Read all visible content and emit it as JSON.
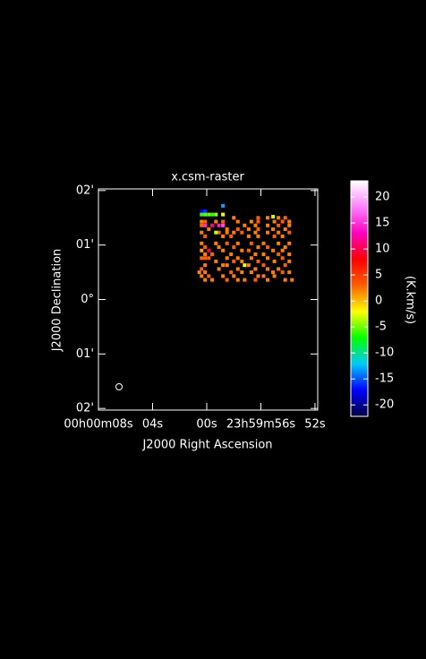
{
  "chart_data": {
    "type": "raster",
    "title": "x.csm-raster",
    "xlabel": "J2000 Right Ascension",
    "ylabel": "J2000 Declination",
    "colorbar_label": "(K.km/s)",
    "xlim": [
      8.0,
      -8.2
    ],
    "ylim": [
      2.03,
      -2.03
    ],
    "xticks": [
      {
        "value": 8,
        "label": "00h00m08s"
      },
      {
        "value": 4,
        "label": "04s"
      },
      {
        "value": 0,
        "label": "00s"
      },
      {
        "value": -4,
        "label": "23h59m56s"
      },
      {
        "value": -8,
        "label": "52s"
      }
    ],
    "yticks": [
      {
        "value": 2,
        "label": "02'"
      },
      {
        "value": 1,
        "label": "01'"
      },
      {
        "value": 0,
        "label": "0°"
      },
      {
        "value": -1,
        "label": "01'"
      },
      {
        "value": -2,
        "label": "02'"
      }
    ],
    "clim": [
      -22.2,
      23.1
    ],
    "cticks": [
      -20,
      -15,
      -10,
      -5,
      0,
      5,
      10,
      15,
      20
    ],
    "colormap": [
      "#000040",
      "#0000ff",
      "#00c8ff",
      "#00ff00",
      "#ffff00",
      "#ff6000",
      "#ff0000",
      "#ff00c0",
      "#ff80ff",
      "#ffffff"
    ],
    "points": [
      [
        0.38,
        1.62,
        -18
      ],
      [
        0.12,
        1.62,
        -16
      ],
      [
        -1.2,
        1.72,
        -13
      ],
      [
        0.38,
        1.56,
        -6
      ],
      [
        0.12,
        1.56,
        -5
      ],
      [
        -0.15,
        1.56,
        -5
      ],
      [
        -0.41,
        1.56,
        -6
      ],
      [
        -0.68,
        1.56,
        -4
      ],
      [
        -1.2,
        1.56,
        -2
      ],
      [
        -2.0,
        1.5,
        2
      ],
      [
        -3.8,
        1.5,
        3
      ],
      [
        -4.5,
        1.5,
        2
      ],
      [
        -5.3,
        1.5,
        2
      ],
      [
        -5.8,
        1.5,
        3
      ],
      [
        -4.9,
        1.52,
        -3
      ],
      [
        0.38,
        1.43,
        2
      ],
      [
        0.12,
        1.43,
        3
      ],
      [
        -0.68,
        1.43,
        2
      ],
      [
        -1.2,
        1.43,
        3
      ],
      [
        -2.3,
        1.43,
        2
      ],
      [
        -3.3,
        1.43,
        2
      ],
      [
        -3.8,
        1.43,
        3
      ],
      [
        -5.0,
        1.43,
        2
      ],
      [
        -5.6,
        1.43,
        3
      ],
      [
        -6.1,
        1.43,
        2
      ],
      [
        0.12,
        1.36,
        15
      ],
      [
        -0.4,
        1.36,
        12
      ],
      [
        -0.9,
        1.36,
        14
      ],
      [
        -1.2,
        1.36,
        16
      ],
      [
        0.38,
        1.36,
        3
      ],
      [
        -2.8,
        1.36,
        2
      ],
      [
        -3.6,
        1.36,
        2
      ],
      [
        -4.5,
        1.36,
        2
      ],
      [
        -5.3,
        1.36,
        3
      ],
      [
        -6.1,
        1.36,
        2
      ],
      [
        -0.15,
        1.29,
        2
      ],
      [
        -1.5,
        1.29,
        2
      ],
      [
        -2.3,
        1.29,
        3
      ],
      [
        -3.1,
        1.29,
        2
      ],
      [
        -3.8,
        1.29,
        3
      ],
      [
        -4.9,
        1.29,
        2
      ],
      [
        -5.8,
        1.29,
        2
      ],
      [
        0.38,
        1.23,
        2
      ],
      [
        -0.9,
        1.23,
        3
      ],
      [
        -0.68,
        1.23,
        -3
      ],
      [
        -1.5,
        1.23,
        2
      ],
      [
        -2.0,
        1.23,
        2
      ],
      [
        -2.6,
        1.23,
        3
      ],
      [
        -3.6,
        1.23,
        2
      ],
      [
        -4.5,
        1.23,
        2
      ],
      [
        -5.3,
        1.23,
        2
      ],
      [
        -6.1,
        1.23,
        3
      ],
      [
        0.12,
        1.16,
        3
      ],
      [
        -1.2,
        1.16,
        2
      ],
      [
        -1.8,
        1.16,
        3
      ],
      [
        -3.1,
        1.16,
        2
      ],
      [
        -3.8,
        1.16,
        2
      ],
      [
        -5.0,
        1.16,
        3
      ],
      [
        -5.6,
        1.16,
        2
      ],
      [
        0.38,
        1.03,
        2
      ],
      [
        -0.68,
        1.03,
        2
      ],
      [
        -1.5,
        1.03,
        3
      ],
      [
        -2.3,
        1.03,
        2
      ],
      [
        -3.3,
        1.03,
        3
      ],
      [
        -4.2,
        1.03,
        2
      ],
      [
        -5.3,
        1.03,
        2
      ],
      [
        -6.1,
        1.03,
        2
      ],
      [
        0.12,
        0.96,
        3
      ],
      [
        -0.9,
        0.96,
        2
      ],
      [
        -2.0,
        0.96,
        3
      ],
      [
        -3.8,
        0.96,
        2
      ],
      [
        -4.5,
        0.96,
        3
      ],
      [
        -5.8,
        0.96,
        2
      ],
      [
        0.38,
        0.9,
        1
      ],
      [
        -0.15,
        0.9,
        10
      ],
      [
        -1.2,
        0.9,
        2
      ],
      [
        -2.6,
        0.9,
        2
      ],
      [
        -3.1,
        0.9,
        3
      ],
      [
        -4.9,
        0.9,
        2
      ],
      [
        -5.6,
        0.9,
        2
      ],
      [
        0.12,
        0.83,
        2
      ],
      [
        -0.4,
        0.83,
        3
      ],
      [
        -1.8,
        0.83,
        2
      ],
      [
        -3.6,
        0.83,
        2
      ],
      [
        -4.2,
        0.83,
        2
      ],
      [
        -5.3,
        0.83,
        3
      ],
      [
        -6.1,
        0.83,
        2
      ],
      [
        0.38,
        0.76,
        3
      ],
      [
        0.12,
        0.76,
        3
      ],
      [
        -0.15,
        0.76,
        3
      ],
      [
        -1.5,
        0.76,
        2
      ],
      [
        -2.3,
        0.76,
        2
      ],
      [
        -3.3,
        0.76,
        2
      ],
      [
        -4.5,
        0.76,
        2
      ],
      [
        -5.6,
        0.76,
        3
      ],
      [
        -0.68,
        0.7,
        2
      ],
      [
        -2.0,
        0.7,
        3
      ],
      [
        -2.6,
        0.7,
        2
      ],
      [
        -3.8,
        0.7,
        3
      ],
      [
        -5.0,
        0.7,
        2
      ],
      [
        -6.1,
        0.7,
        2
      ],
      [
        0.12,
        0.63,
        2
      ],
      [
        -1.2,
        0.63,
        2
      ],
      [
        -1.5,
        0.63,
        2
      ],
      [
        -2.8,
        0.63,
        -2
      ],
      [
        -3.1,
        0.63,
        2
      ],
      [
        -4.2,
        0.63,
        3
      ],
      [
        -5.8,
        0.63,
        3
      ],
      [
        0.38,
        0.56,
        3
      ],
      [
        -0.9,
        0.56,
        2
      ],
      [
        -2.3,
        0.56,
        2
      ],
      [
        -3.6,
        0.56,
        2
      ],
      [
        -4.5,
        0.56,
        2
      ],
      [
        -5.3,
        0.56,
        2
      ],
      [
        0.55,
        0.5,
        2
      ],
      [
        0.12,
        0.5,
        2
      ],
      [
        -1.8,
        0.5,
        3
      ],
      [
        -2.6,
        0.5,
        2
      ],
      [
        -3.3,
        0.5,
        2
      ],
      [
        -4.9,
        0.5,
        2
      ],
      [
        -5.6,
        0.5,
        3
      ],
      [
        -6.1,
        0.5,
        2
      ],
      [
        0.38,
        0.43,
        2
      ],
      [
        -0.15,
        0.43,
        3
      ],
      [
        -1.2,
        0.43,
        2
      ],
      [
        -2.0,
        0.43,
        2
      ],
      [
        -3.8,
        0.43,
        2
      ],
      [
        -4.2,
        0.43,
        2
      ],
      [
        -5.0,
        0.43,
        2
      ],
      [
        0.12,
        0.36,
        2
      ],
      [
        -0.4,
        0.36,
        2
      ],
      [
        -1.5,
        0.36,
        3
      ],
      [
        -2.3,
        0.36,
        2
      ],
      [
        -2.8,
        0.36,
        2
      ],
      [
        -3.6,
        0.36,
        3
      ],
      [
        -4.5,
        0.36,
        2
      ],
      [
        -5.8,
        0.36,
        2
      ],
      [
        -6.3,
        0.36,
        2
      ]
    ]
  }
}
